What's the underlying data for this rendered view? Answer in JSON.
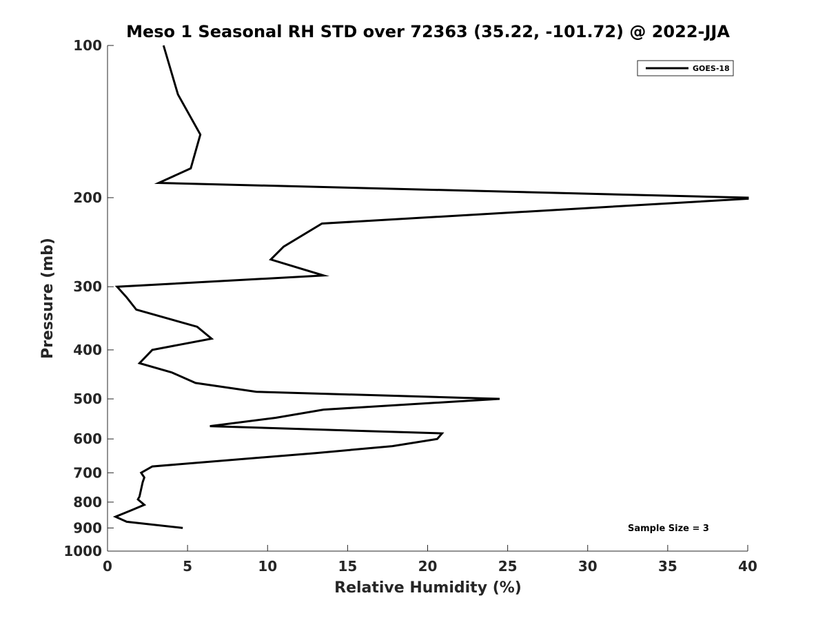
{
  "chart_data": {
    "type": "line",
    "title": "Meso 1 Seasonal RH STD over 72363 (35.22, -101.72) @ 2022-JJA",
    "xlabel": "Relative Humidity (%)",
    "ylabel": "Pressure (mb)",
    "xlim": [
      0,
      40
    ],
    "ylim": [
      100,
      1000
    ],
    "y_scale": "log",
    "y_reversed": true,
    "grid": false,
    "legend_position": "top-right",
    "xticks": [
      0,
      5,
      10,
      15,
      20,
      25,
      30,
      35,
      40
    ],
    "yticks": [
      100,
      200,
      300,
      400,
      500,
      600,
      700,
      800,
      900,
      1000
    ],
    "series": [
      {
        "name": "GOES-18",
        "color": "#000000",
        "points": [
          {
            "x": 3.5,
            "y": 100
          },
          {
            "x": 4.4,
            "y": 125
          },
          {
            "x": 5.8,
            "y": 150
          },
          {
            "x": 5.2,
            "y": 175
          },
          {
            "x": 3.2,
            "y": 187
          },
          {
            "x": 40.0,
            "y": 200
          },
          {
            "x": 40.0,
            "y": 201
          },
          {
            "x": 13.4,
            "y": 225
          },
          {
            "x": 11.0,
            "y": 250
          },
          {
            "x": 10.2,
            "y": 265
          },
          {
            "x": 13.5,
            "y": 285
          },
          {
            "x": 0.6,
            "y": 300
          },
          {
            "x": 1.2,
            "y": 315
          },
          {
            "x": 1.8,
            "y": 333
          },
          {
            "x": 5.6,
            "y": 360
          },
          {
            "x": 6.5,
            "y": 380
          },
          {
            "x": 2.8,
            "y": 400
          },
          {
            "x": 2.0,
            "y": 425
          },
          {
            "x": 4.0,
            "y": 443
          },
          {
            "x": 5.5,
            "y": 465
          },
          {
            "x": 9.3,
            "y": 484
          },
          {
            "x": 24.5,
            "y": 500
          },
          {
            "x": 13.5,
            "y": 525
          },
          {
            "x": 10.5,
            "y": 545
          },
          {
            "x": 6.4,
            "y": 566
          },
          {
            "x": 20.9,
            "y": 585
          },
          {
            "x": 20.6,
            "y": 600
          },
          {
            "x": 17.8,
            "y": 620
          },
          {
            "x": 13.0,
            "y": 640
          },
          {
            "x": 2.8,
            "y": 680
          },
          {
            "x": 2.1,
            "y": 700
          },
          {
            "x": 2.3,
            "y": 715
          },
          {
            "x": 2.2,
            "y": 730
          },
          {
            "x": 2.0,
            "y": 780
          },
          {
            "x": 1.9,
            "y": 790
          },
          {
            "x": 2.3,
            "y": 810
          },
          {
            "x": 1.5,
            "y": 830
          },
          {
            "x": 0.5,
            "y": 855
          },
          {
            "x": 1.2,
            "y": 875
          },
          {
            "x": 4.7,
            "y": 900
          }
        ]
      }
    ],
    "annotations": [
      "Sample Size = 3"
    ]
  }
}
